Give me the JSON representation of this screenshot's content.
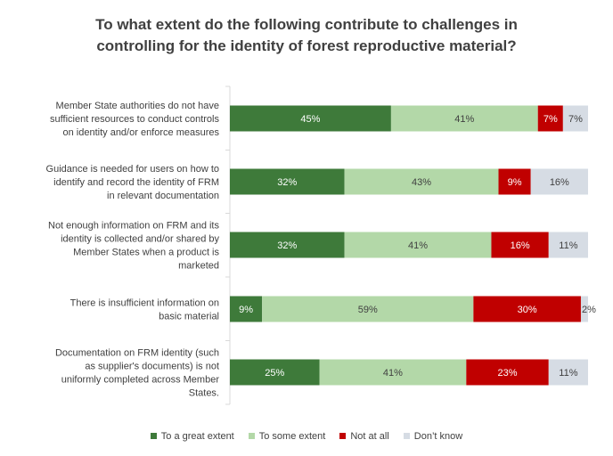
{
  "chart_data": {
    "type": "bar",
    "orientation": "horizontal",
    "stacked": true,
    "title": "To what extent do the following contribute to challenges in controlling for the identity of forest reproductive material?",
    "title_lines": [
      "To what extent do the following contribute to challenges in",
      "controlling for the identity of forest reproductive material?"
    ],
    "categories": [
      "Member State authorities do not have sufficient resources to conduct controls on identity and/or enforce measures",
      "Guidance is needed for users on how to identify and record the identity of FRM in relevant documentation",
      "Not enough information on FRM and its identity is collected and/or shared by Member States when a product is marketed",
      "There is insufficient information on basic material",
      "Documentation on FRM identity (such as supplier's documents) is not uniformly completed across Member States."
    ],
    "category_lines": [
      [
        "Member State authorities do not have",
        "sufficient resources to conduct controls",
        "on identity and/or enforce measures"
      ],
      [
        "Guidance is needed for users on how to",
        "identify and record the identity of FRM",
        "in relevant documentation"
      ],
      [
        "Not enough information on FRM and its",
        "identity is collected and/or shared by",
        "Member States when a product is",
        "marketed"
      ],
      [
        "There is insufficient information on",
        "basic material"
      ],
      [
        "Documentation on FRM identity (such",
        "as supplier's documents) is not",
        "uniformly completed across Member",
        "States."
      ]
    ],
    "series": [
      {
        "name": "To a great extent",
        "color": "#3e7a3a",
        "values": [
          45,
          32,
          32,
          9,
          25
        ],
        "labels": [
          "45%",
          "32%",
          "32%",
          "9%",
          "25%"
        ]
      },
      {
        "name": "To some extent",
        "color": "#b3d8a8",
        "values": [
          41,
          43,
          41,
          59,
          41
        ],
        "labels": [
          "41%",
          "43%",
          "41%",
          "59%",
          "41%"
        ]
      },
      {
        "name": "Not at all",
        "color": "#c00000",
        "values": [
          7,
          9,
          16,
          30,
          23
        ],
        "labels": [
          "7%",
          "9%",
          "16%",
          "30%",
          "23%"
        ]
      },
      {
        "name": "Don't know",
        "color": "#d6dce4",
        "values": [
          7,
          16,
          11,
          2,
          11
        ],
        "labels": [
          "7%",
          "16%",
          "11%",
          "2%",
          "11%"
        ]
      }
    ],
    "legend": {
      "position": "bottom",
      "labels": [
        "To a great extent",
        "To some extent",
        "Not at all",
        "Don’t know"
      ]
    },
    "xlim": [
      0,
      100
    ],
    "grid": false
  }
}
